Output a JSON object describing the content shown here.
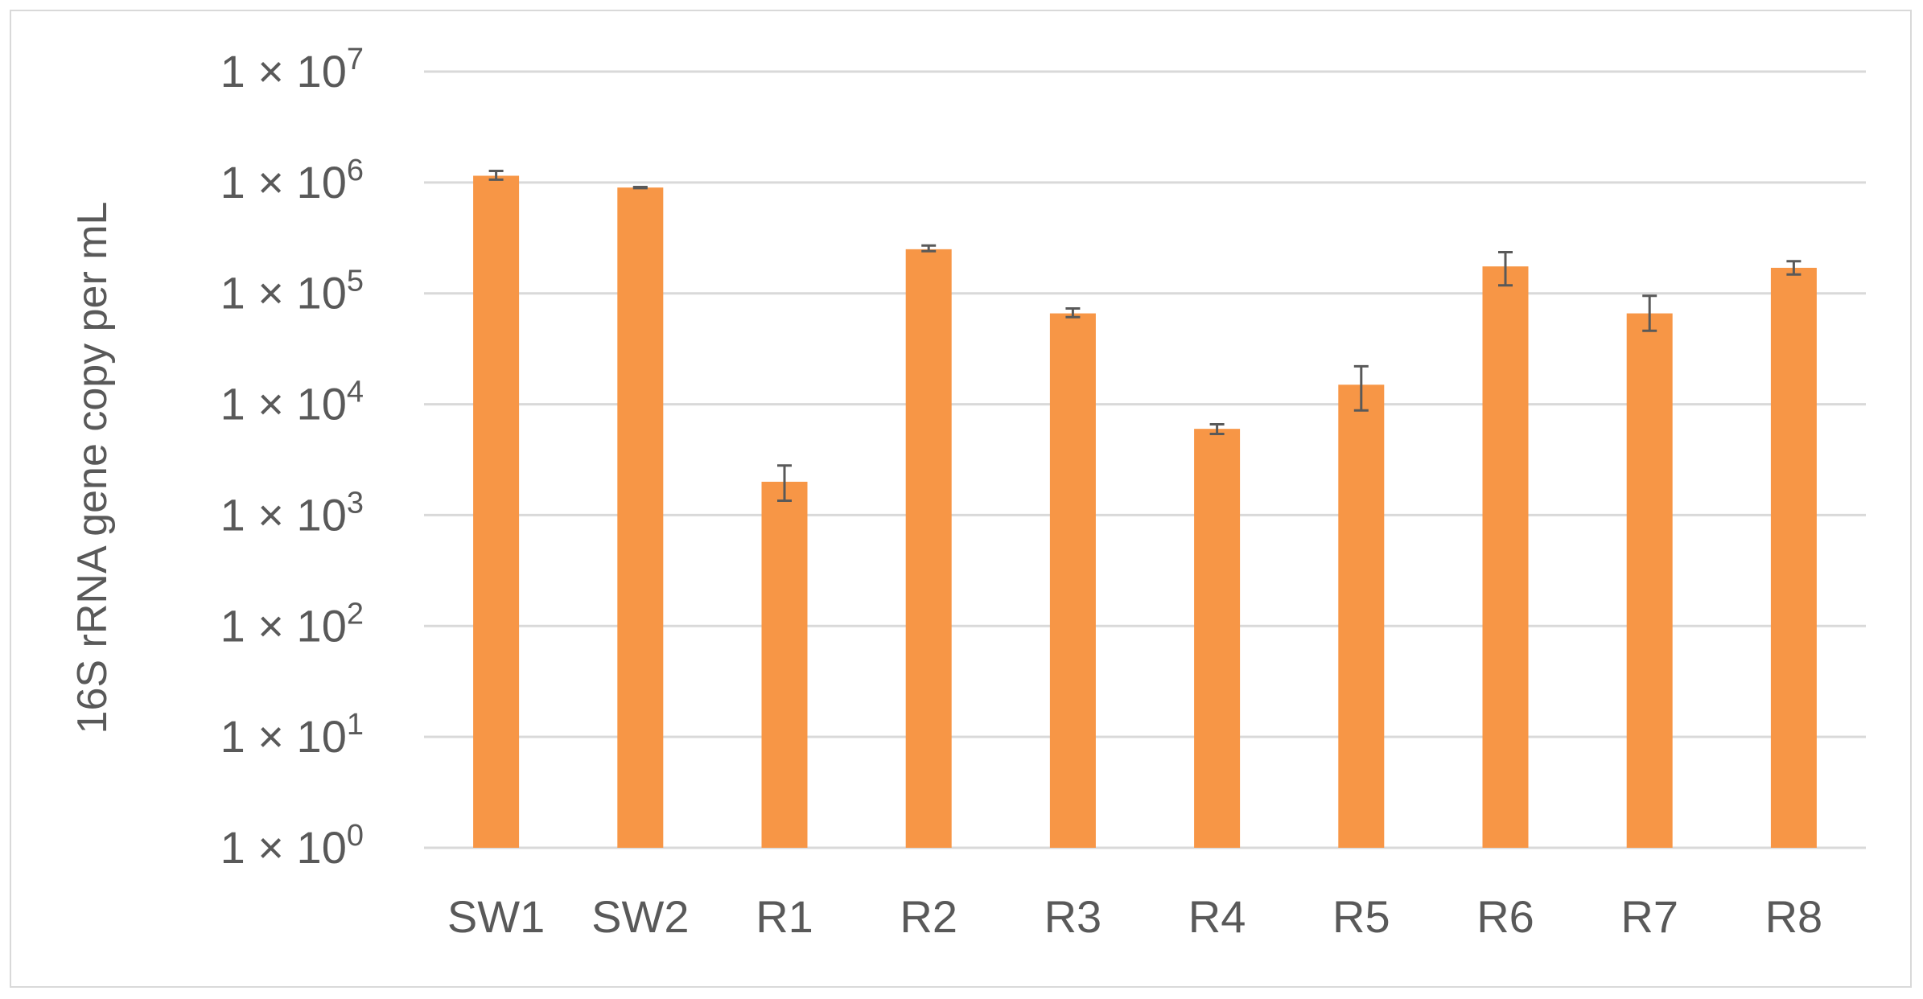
{
  "chart_data": {
    "type": "bar",
    "title": "",
    "xlabel": "",
    "ylabel": "16S rRNA gene copy per mL",
    "yscale": "log10",
    "ylim": [
      1,
      10000000
    ],
    "yticks": [
      {
        "value": 1,
        "base": "1 × 10",
        "exp": "0"
      },
      {
        "value": 10,
        "base": "1 × 10",
        "exp": "1"
      },
      {
        "value": 100,
        "base": "1 × 10",
        "exp": "2"
      },
      {
        "value": 1000,
        "base": "1 × 10",
        "exp": "3"
      },
      {
        "value": 10000,
        "base": "1 × 10",
        "exp": "4"
      },
      {
        "value": 100000,
        "base": "1 × 10",
        "exp": "5"
      },
      {
        "value": 1000000,
        "base": "1 × 10",
        "exp": "6"
      },
      {
        "value": 10000000,
        "base": "1 × 10",
        "exp": "7"
      }
    ],
    "grid": true,
    "legend": "none",
    "categories": [
      "SW1",
      "SW2",
      "R1",
      "R2",
      "R3",
      "R4",
      "R5",
      "R6",
      "R7",
      "R8"
    ],
    "series": [
      {
        "values": [
          1150000,
          900000,
          2000.0,
          250000,
          66000,
          6000,
          15000,
          175000,
          66000,
          170000
        ],
        "error_low": [
          1060000,
          890000,
          1350,
          240000,
          61000,
          5400,
          8800,
          118000,
          46000,
          148000
        ],
        "error_high": [
          1270000,
          910000,
          2800,
          270000,
          73000,
          6600,
          22000,
          235000,
          95000,
          195000
        ],
        "color": "#f79646"
      }
    ],
    "error_bar_color": "#595959",
    "gridline_color": "#d9d9d9"
  }
}
